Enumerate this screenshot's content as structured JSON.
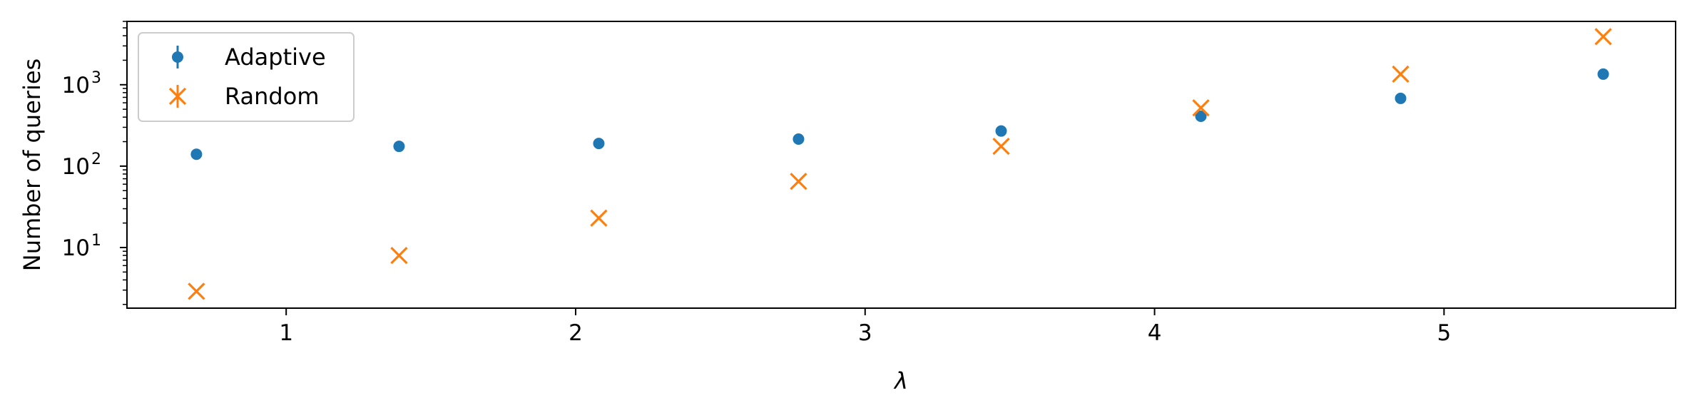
{
  "chart_data": {
    "type": "scatter",
    "xlabel": "λ",
    "ylabel": "Number of queries",
    "xlim": [
      0.45,
      5.8
    ],
    "ylim": [
      1.8,
      6000
    ],
    "yscale": "log",
    "x_ticks": [
      1,
      2,
      3,
      4,
      5
    ],
    "y_ticks": [
      {
        "value": 10,
        "base": "10",
        "exp": "1"
      },
      {
        "value": 100,
        "base": "10",
        "exp": "2"
      },
      {
        "value": 1000,
        "base": "10",
        "exp": "3"
      }
    ],
    "grid": false,
    "legend_position": "top-left",
    "series": [
      {
        "name": "Adaptive",
        "marker": "circle",
        "color": "#1f77b4",
        "x": [
          0.69,
          1.39,
          2.08,
          2.77,
          3.47,
          4.16,
          4.85,
          5.55
        ],
        "y": [
          140,
          175,
          190,
          215,
          270,
          410,
          680,
          1350
        ]
      },
      {
        "name": "Random",
        "marker": "x",
        "color": "#ff7f0e",
        "x": [
          0.69,
          1.39,
          2.08,
          2.77,
          3.47,
          4.16,
          4.85,
          5.55
        ],
        "y": [
          2.9,
          8,
          23,
          65,
          175,
          520,
          1350,
          3900
        ]
      }
    ]
  }
}
